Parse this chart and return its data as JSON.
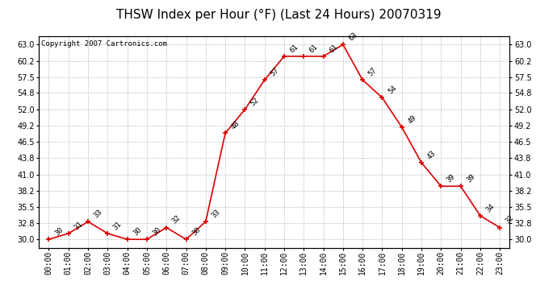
{
  "title": "THSW Index per Hour (°F) (Last 24 Hours) 20070319",
  "copyright": "Copyright 2007 Cartronics.com",
  "hours": [
    "00:00",
    "01:00",
    "02:00",
    "03:00",
    "04:00",
    "05:00",
    "06:00",
    "07:00",
    "08:00",
    "09:00",
    "10:00",
    "11:00",
    "12:00",
    "13:00",
    "14:00",
    "15:00",
    "16:00",
    "17:00",
    "18:00",
    "19:00",
    "20:00",
    "21:00",
    "22:00",
    "23:00"
  ],
  "values": [
    30,
    31,
    33,
    31,
    30,
    30,
    32,
    30,
    33,
    48,
    52,
    57,
    61,
    61,
    61,
    63,
    57,
    54,
    49,
    43,
    39,
    39,
    34,
    32
  ],
  "line_color": "#dd0000",
  "marker_color": "#dd0000",
  "bg_color": "#ffffff",
  "grid_color": "#c0c0c0",
  "ylim_min": 28.6,
  "ylim_max": 64.4,
  "yticks": [
    30.0,
    32.8,
    35.5,
    38.2,
    41.0,
    43.8,
    46.5,
    49.2,
    52.0,
    54.8,
    57.5,
    60.2,
    63.0
  ],
  "title_fontsize": 11,
  "copyright_fontsize": 6.5,
  "label_fontsize": 6.5,
  "tick_fontsize": 7
}
